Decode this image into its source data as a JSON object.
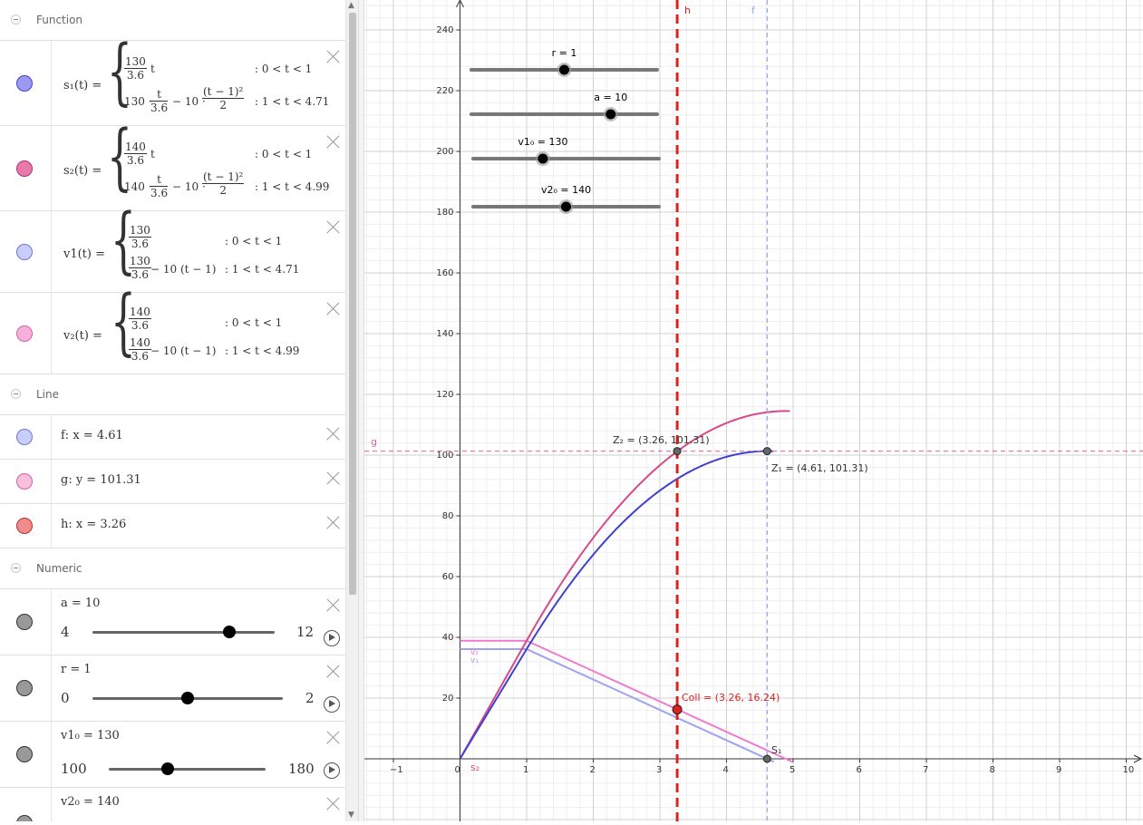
{
  "algebra": {
    "function_header": "Function",
    "line_header": "Line",
    "numeric_header": "Numeric",
    "s1": {
      "name": "s₁(t) =",
      "p1_num": "130",
      "p1_den": "3.6",
      "p1_var": "t",
      "p1_cond": ": 0 < t < 1",
      "p2_a": "130 ·",
      "p2_num": "t",
      "p2_den": "3.6",
      "p2_b": "− 10 ·",
      "p2_num2": "(t − 1)²",
      "p2_den2": "2",
      "p2_cond": ": 1 < t < 4.71",
      "color": "#9a9af0"
    },
    "s2": {
      "name": "s₂(t) =",
      "p1_num": "140",
      "p1_den": "3.6",
      "p1_var": "t",
      "p1_cond": ": 0 < t < 1",
      "p2_a": "140 ·",
      "p2_num": "t",
      "p2_den": "3.6",
      "p2_b": "− 10 ·",
      "p2_num2": "(t − 1)²",
      "p2_den2": "2",
      "p2_cond": ": 1 < t < 4.99",
      "color": "#e87aaa"
    },
    "v1": {
      "name": "v1(t) =",
      "p1_num": "130",
      "p1_den": "3.6",
      "p1_cond": ": 0 < t < 1",
      "p2_num": "130",
      "p2_den": "3.6",
      "p2_b": "− 10  (t − 1)",
      "p2_cond": ": 1 < t < 4.71",
      "color": "#c8cdfa"
    },
    "v2": {
      "name": "v₂(t) =",
      "p1_num": "140",
      "p1_den": "3.6",
      "p1_cond": ": 0 < t < 1",
      "p2_num": "140",
      "p2_den": "3.6",
      "p2_b": "− 10  (t − 1)",
      "p2_cond": ": 1 < t < 4.99",
      "color": "#f9b0dc"
    },
    "f": {
      "expr": "f: x = 4.61",
      "color": "#c8cdfa"
    },
    "g": {
      "expr": "g: y = 101.31",
      "color": "#f9c0dc"
    },
    "h": {
      "expr": "h: x = 3.26",
      "color": "#f08c8c"
    },
    "a": {
      "label": "a = 10",
      "min": "4",
      "max": "12",
      "value": 10,
      "lo": 4,
      "hi": 12
    },
    "r": {
      "label": "r = 1",
      "min": "0",
      "max": "2",
      "value": 1,
      "lo": 0,
      "hi": 2
    },
    "v1_0": {
      "label": "v1₀ = 130",
      "min": "100",
      "max": "180",
      "value": 130,
      "lo": 100,
      "hi": 180
    },
    "v2_0": {
      "label": "v2₀ = 140"
    }
  },
  "graphics": {
    "sliders": [
      {
        "label": "r = 1",
        "value": 1,
        "lo": 0,
        "hi": 2
      },
      {
        "label": "a = 10",
        "value": 10,
        "lo": 4,
        "hi": 12
      },
      {
        "label": "v1₀ = 130",
        "value": 130,
        "lo": 100,
        "hi": 180
      },
      {
        "label": "v2₀ = 140",
        "value": 140,
        "lo": 100,
        "hi": 180
      }
    ],
    "labels": {
      "h": "h",
      "f": "f",
      "g": "g",
      "Z2": "Z₂ = (3.26, 101.31)",
      "Z1": "Z₁ = (4.61, 101.31)",
      "Coll": "Coll = (3.26, 16.24)",
      "S1": "S₁",
      "s2": "s₂",
      "v2": "v₂",
      "v1": "v₁"
    }
  },
  "chart_data": {
    "type": "line",
    "xlim": [
      -1.4,
      10.2
    ],
    "ylim": [
      -20,
      250
    ],
    "x_ticks": [
      -1,
      0,
      1,
      2,
      3,
      4,
      5,
      6,
      7,
      8,
      9,
      10
    ],
    "y_ticks": [
      20,
      40,
      60,
      80,
      100,
      120,
      140,
      160,
      180,
      200,
      220,
      240
    ],
    "grid": true,
    "a": 10,
    "v1_0": 130,
    "v2_0": 140,
    "t1_end": 4.71,
    "t2_end": 4.99,
    "vertical_lines": [
      {
        "name": "h",
        "x": 3.26,
        "color": "#e0201f",
        "style": "dashed-thick"
      },
      {
        "name": "f",
        "x": 4.61,
        "color": "#8fa8ee",
        "style": "dashed"
      }
    ],
    "horizontal_lines": [
      {
        "name": "g",
        "y": 101.31,
        "color": "#e8609a",
        "style": "dashed"
      }
    ],
    "points": [
      {
        "name": "Z2",
        "x": 3.26,
        "y": 101.31,
        "color": "#555"
      },
      {
        "name": "Z1",
        "x": 4.61,
        "y": 101.31,
        "color": "#555"
      },
      {
        "name": "Coll",
        "x": 3.26,
        "y": 16.24,
        "color": "#e0201f"
      },
      {
        "name": "S1",
        "x": 4.61,
        "y": 0,
        "color": "#555"
      }
    ],
    "series_colors": {
      "s1": "#4040d0",
      "s2": "#d94888",
      "v1": "#a0a4f0",
      "v2": "#f07ad0"
    }
  }
}
